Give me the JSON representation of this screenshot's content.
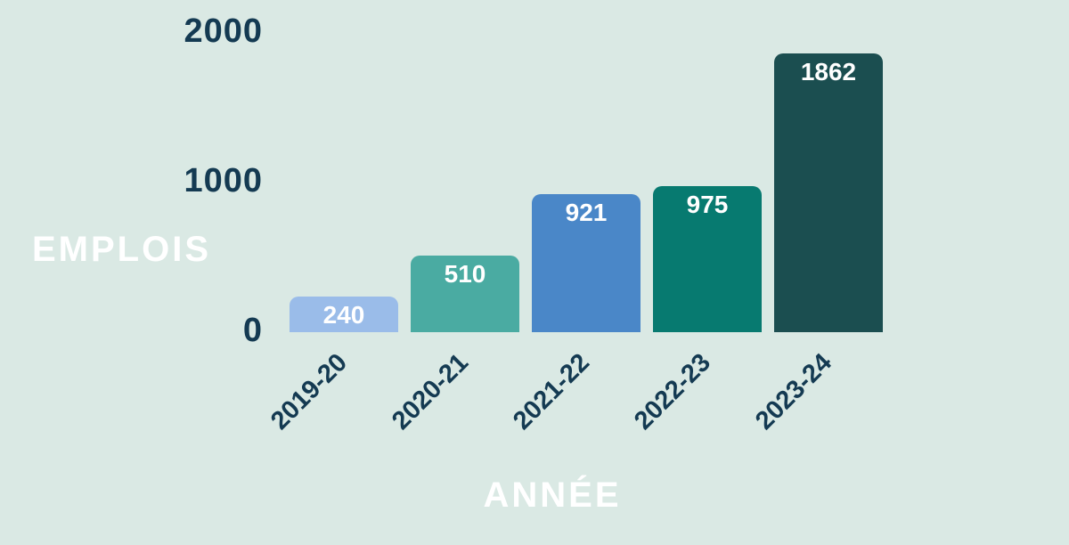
{
  "chart_data": {
    "type": "bar",
    "title": "",
    "xlabel": "ANNÉE",
    "ylabel": "EMPLOIS",
    "categories": [
      "2019-20",
      "2020-21",
      "2021-22",
      "2022-23",
      "2023-24"
    ],
    "values": [
      240,
      510,
      921,
      975,
      1862
    ],
    "value_labels": [
      "240",
      "510",
      "921",
      "975",
      "1862"
    ],
    "bar_colors": [
      "#9abce9",
      "#4aaba2",
      "#4a87c8",
      "#077a70",
      "#1b4e50"
    ],
    "y_ticks": [
      {
        "label": "2000",
        "value": 2000
      },
      {
        "label": "1000",
        "value": 1000
      },
      {
        "label": "0",
        "value": 0
      }
    ],
    "ylim": [
      0,
      2000
    ],
    "grid": false,
    "legend": false,
    "colors": {
      "background": "#dae9e4",
      "axis_text": "#143a52",
      "axis_title_text": "#ffffff",
      "bar_value_text": "#ffffff"
    }
  }
}
